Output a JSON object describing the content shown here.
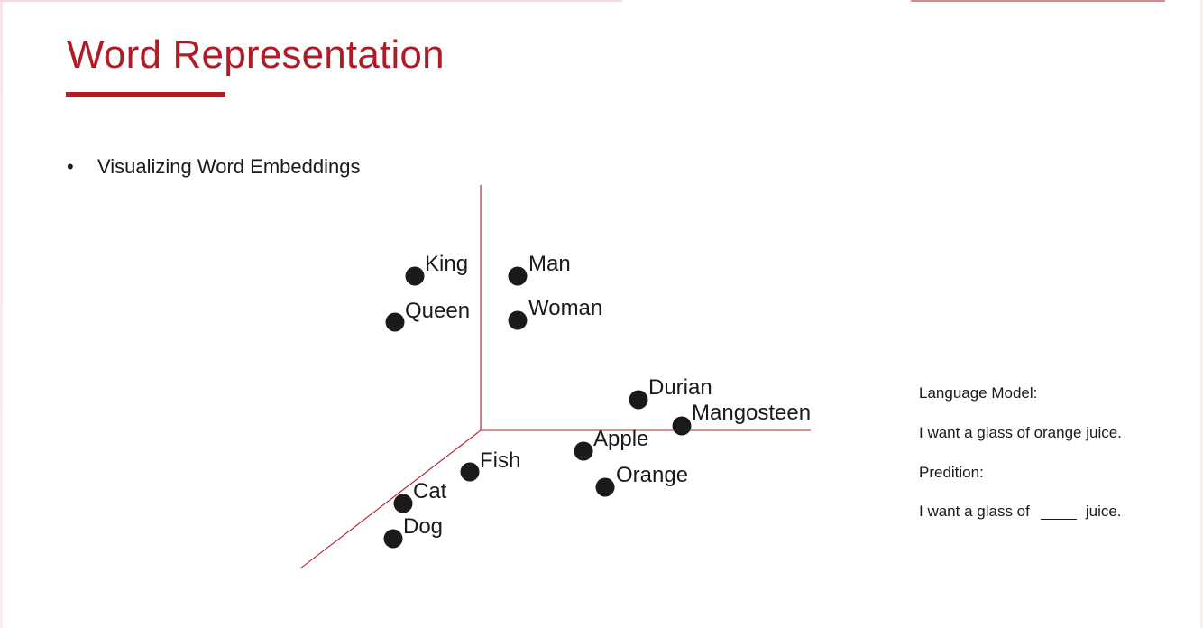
{
  "slide": {
    "title": "Word Representation",
    "bullet_marker": "•",
    "bullet_text": "Visualizing Word Embeddings"
  },
  "colors": {
    "accent": "#b01c26",
    "text": "#1a1a1a"
  },
  "chart_data": {
    "type": "scatter",
    "points": [
      {
        "label": "King"
      },
      {
        "label": "Man"
      },
      {
        "label": "Queen"
      },
      {
        "label": "Woman"
      },
      {
        "label": "Durian"
      },
      {
        "label": "Mangosteen"
      },
      {
        "label": "Apple"
      },
      {
        "label": "Fish"
      },
      {
        "label": "Orange"
      },
      {
        "label": "Cat"
      },
      {
        "label": "Dog"
      }
    ]
  },
  "language_model": {
    "heading": "Language Model:",
    "example": "I want a glass of orange juice.",
    "prediction_heading": "Predition:",
    "prediction_before": "I want a glass of",
    "prediction_after": "juice."
  }
}
